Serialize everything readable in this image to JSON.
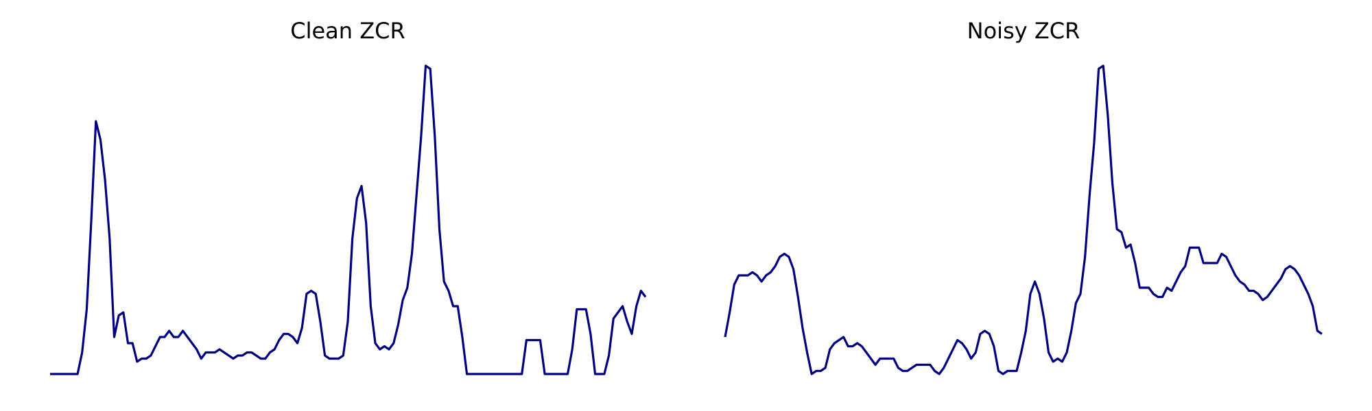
{
  "chart_data": [
    {
      "type": "line",
      "title": "Clean ZCR",
      "color": "#000080",
      "x": [
        0,
        6,
        7,
        8,
        9,
        10,
        11,
        12,
        13,
        14,
        15,
        16,
        17,
        18,
        19,
        20,
        21,
        22,
        23,
        24,
        25,
        26,
        27,
        28,
        29,
        30,
        31,
        32,
        33,
        34,
        35,
        36,
        37,
        38,
        39,
        40,
        41,
        42,
        43,
        44,
        45,
        46,
        47,
        48,
        49,
        50,
        51,
        52,
        53,
        54,
        55,
        56,
        57,
        58,
        59,
        60,
        61,
        62,
        63,
        64,
        65,
        66,
        67,
        68,
        69,
        70,
        71,
        72,
        73,
        74,
        75,
        76,
        77,
        78,
        79,
        80,
        81,
        82,
        83,
        84,
        85,
        86,
        87,
        88,
        89,
        90,
        91,
        103,
        104,
        107,
        108,
        113,
        114,
        115,
        117,
        118,
        119,
        121,
        122,
        123,
        124,
        125,
        126,
        127,
        128,
        129,
        130
      ],
      "values": [
        0,
        0,
        0.07,
        0.21,
        0.5,
        0.82,
        0.76,
        0.63,
        0.44,
        0.12,
        0.19,
        0.2,
        0.1,
        0.1,
        0.04,
        0.05,
        0.05,
        0.06,
        0.09,
        0.12,
        0.12,
        0.14,
        0.12,
        0.12,
        0.14,
        0.12,
        0.1,
        0.08,
        0.05,
        0.07,
        0.07,
        0.07,
        0.08,
        0.07,
        0.06,
        0.05,
        0.06,
        0.06,
        0.07,
        0.07,
        0.06,
        0.05,
        0.05,
        0.07,
        0.08,
        0.11,
        0.13,
        0.13,
        0.12,
        0.1,
        0.15,
        0.26,
        0.27,
        0.26,
        0.17,
        0.06,
        0.05,
        0.05,
        0.05,
        0.06,
        0.17,
        0.44,
        0.57,
        0.61,
        0.49,
        0.22,
        0.1,
        0.08,
        0.09,
        0.08,
        0.1,
        0.16,
        0.24,
        0.28,
        0.39,
        0.58,
        0.77,
        1.0,
        0.99,
        0.77,
        0.47,
        0.3,
        0.27,
        0.22,
        0.22,
        0.12,
        0,
        0,
        0.11,
        0.11,
        0,
        0,
        0.08,
        0.21,
        0.21,
        0.13,
        0,
        0,
        0.06,
        0.18,
        0.2,
        0.22,
        0.17,
        0.13,
        0.22,
        0.27,
        0.25
      ],
      "xlim": [
        0,
        130
      ],
      "ylim": [
        0,
        1
      ]
    },
    {
      "type": "line",
      "title": "Noisy ZCR",
      "color": "#000080",
      "values": [
        0.12,
        0.2,
        0.29,
        0.32,
        0.32,
        0.32,
        0.33,
        0.32,
        0.3,
        0.32,
        0.33,
        0.35,
        0.38,
        0.39,
        0.38,
        0.34,
        0.25,
        0.15,
        0.07,
        0,
        0.01,
        0.01,
        0.02,
        0.08,
        0.1,
        0.11,
        0.12,
        0.09,
        0.09,
        0.1,
        0.09,
        0.07,
        0.05,
        0.03,
        0.05,
        0.05,
        0.05,
        0.05,
        0.02,
        0.01,
        0.01,
        0.02,
        0.03,
        0.03,
        0.03,
        0.03,
        0.01,
        0.0,
        0.02,
        0.05,
        0.08,
        0.11,
        0.1,
        0.08,
        0.05,
        0.07,
        0.13,
        0.14,
        0.13,
        0.09,
        0.01,
        0.0,
        0.01,
        0.01,
        0.01,
        0.07,
        0.14,
        0.26,
        0.3,
        0.26,
        0.18,
        0.07,
        0.04,
        0.05,
        0.04,
        0.07,
        0.14,
        0.23,
        0.26,
        0.38,
        0.58,
        0.75,
        0.99,
        1.0,
        0.84,
        0.62,
        0.47,
        0.46,
        0.41,
        0.42,
        0.36,
        0.28,
        0.28,
        0.28,
        0.26,
        0.25,
        0.25,
        0.28,
        0.27,
        0.3,
        0.33,
        0.35,
        0.41,
        0.41,
        0.41,
        0.36,
        0.36,
        0.36,
        0.36,
        0.39,
        0.38,
        0.35,
        0.32,
        0.3,
        0.29,
        0.27,
        0.27,
        0.26,
        0.24,
        0.25,
        0.27,
        0.29,
        0.31,
        0.34,
        0.35,
        0.34,
        0.32,
        0.29,
        0.26,
        0.22,
        0.14,
        0.13
      ],
      "xlim": [
        0,
        131
      ],
      "ylim": [
        0,
        1
      ]
    }
  ]
}
